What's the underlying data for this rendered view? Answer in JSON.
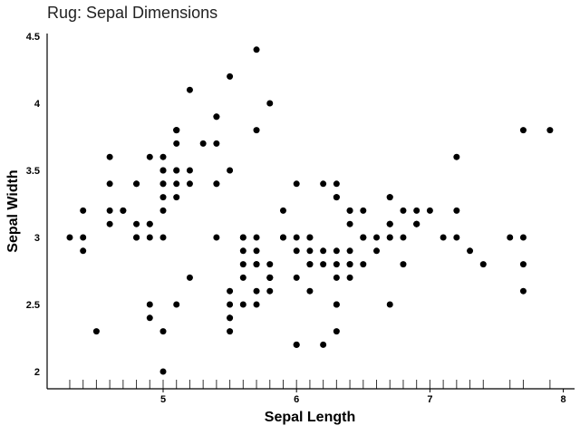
{
  "chart_data": {
    "type": "scatter",
    "title": "Rug: Sepal Dimensions",
    "xlabel": "Sepal Length",
    "ylabel": "Sepal Width",
    "xlim": [
      4.2,
      8.1
    ],
    "ylim": [
      1.9,
      4.5
    ],
    "x_ticks": [
      5,
      6,
      7,
      8
    ],
    "y_ticks": [
      2,
      2.5,
      3,
      3.5,
      4,
      4.5
    ],
    "x_tick_labels": [
      "5",
      "6",
      "7",
      "8"
    ],
    "y_tick_labels": [
      "2",
      "2.5",
      "3",
      "3.5",
      "4",
      "4.5"
    ],
    "rug": "x-axis",
    "marker_color": "#000000",
    "points": [
      [
        5.1,
        3.5
      ],
      [
        4.9,
        3.0
      ],
      [
        4.7,
        3.2
      ],
      [
        4.6,
        3.1
      ],
      [
        5.0,
        3.6
      ],
      [
        5.4,
        3.9
      ],
      [
        4.6,
        3.4
      ],
      [
        5.0,
        3.4
      ],
      [
        4.4,
        2.9
      ],
      [
        4.9,
        3.1
      ],
      [
        5.4,
        3.7
      ],
      [
        4.8,
        3.4
      ],
      [
        4.8,
        3.0
      ],
      [
        4.3,
        3.0
      ],
      [
        5.8,
        4.0
      ],
      [
        5.7,
        4.4
      ],
      [
        5.4,
        3.9
      ],
      [
        5.1,
        3.5
      ],
      [
        5.7,
        3.8
      ],
      [
        5.1,
        3.8
      ],
      [
        5.4,
        3.4
      ],
      [
        5.1,
        3.7
      ],
      [
        4.6,
        3.6
      ],
      [
        5.1,
        3.3
      ],
      [
        4.8,
        3.4
      ],
      [
        5.0,
        3.0
      ],
      [
        5.0,
        3.4
      ],
      [
        5.2,
        3.5
      ],
      [
        5.2,
        3.4
      ],
      [
        4.7,
        3.2
      ],
      [
        4.8,
        3.1
      ],
      [
        5.4,
        3.4
      ],
      [
        5.2,
        4.1
      ],
      [
        5.5,
        4.2
      ],
      [
        4.9,
        3.1
      ],
      [
        5.0,
        3.2
      ],
      [
        5.5,
        3.5
      ],
      [
        4.9,
        3.6
      ],
      [
        4.4,
        3.0
      ],
      [
        5.1,
        3.4
      ],
      [
        5.0,
        3.5
      ],
      [
        4.5,
        2.3
      ],
      [
        4.4,
        3.2
      ],
      [
        5.0,
        3.5
      ],
      [
        5.1,
        3.8
      ],
      [
        4.8,
        3.0
      ],
      [
        5.1,
        3.8
      ],
      [
        4.6,
        3.2
      ],
      [
        5.3,
        3.7
      ],
      [
        5.0,
        3.3
      ],
      [
        7.0,
        3.2
      ],
      [
        6.4,
        3.2
      ],
      [
        6.9,
        3.1
      ],
      [
        5.5,
        2.3
      ],
      [
        6.5,
        2.8
      ],
      [
        5.7,
        2.8
      ],
      [
        6.3,
        3.3
      ],
      [
        4.9,
        2.4
      ],
      [
        6.6,
        2.9
      ],
      [
        5.2,
        2.7
      ],
      [
        5.0,
        2.0
      ],
      [
        5.9,
        3.0
      ],
      [
        6.0,
        2.2
      ],
      [
        6.1,
        2.9
      ],
      [
        5.6,
        2.9
      ],
      [
        6.7,
        3.1
      ],
      [
        5.6,
        3.0
      ],
      [
        5.8,
        2.7
      ],
      [
        6.2,
        2.2
      ],
      [
        5.6,
        2.5
      ],
      [
        5.9,
        3.2
      ],
      [
        6.1,
        2.8
      ],
      [
        6.3,
        2.5
      ],
      [
        6.1,
        2.8
      ],
      [
        6.4,
        2.9
      ],
      [
        6.6,
        3.0
      ],
      [
        6.8,
        2.8
      ],
      [
        6.7,
        3.0
      ],
      [
        6.0,
        2.9
      ],
      [
        5.7,
        2.6
      ],
      [
        5.5,
        2.4
      ],
      [
        5.5,
        2.4
      ],
      [
        5.8,
        2.7
      ],
      [
        6.0,
        2.7
      ],
      [
        5.4,
        3.0
      ],
      [
        6.0,
        3.4
      ],
      [
        6.7,
        3.1
      ],
      [
        6.3,
        2.3
      ],
      [
        5.6,
        3.0
      ],
      [
        5.5,
        2.5
      ],
      [
        5.5,
        2.6
      ],
      [
        6.1,
        3.0
      ],
      [
        5.8,
        2.6
      ],
      [
        5.0,
        2.3
      ],
      [
        5.6,
        2.7
      ],
      [
        5.7,
        3.0
      ],
      [
        5.7,
        2.9
      ],
      [
        6.2,
        2.9
      ],
      [
        5.1,
        2.5
      ],
      [
        5.7,
        2.8
      ],
      [
        6.3,
        3.3
      ],
      [
        5.8,
        2.7
      ],
      [
        7.1,
        3.0
      ],
      [
        6.3,
        2.9
      ],
      [
        6.5,
        3.0
      ],
      [
        7.6,
        3.0
      ],
      [
        4.9,
        2.5
      ],
      [
        7.3,
        2.9
      ],
      [
        6.7,
        2.5
      ],
      [
        7.2,
        3.6
      ],
      [
        6.5,
        3.2
      ],
      [
        6.4,
        2.7
      ],
      [
        6.8,
        3.0
      ],
      [
        5.7,
        2.5
      ],
      [
        5.8,
        2.8
      ],
      [
        6.4,
        3.2
      ],
      [
        6.5,
        3.0
      ],
      [
        7.7,
        3.8
      ],
      [
        7.7,
        2.6
      ],
      [
        6.0,
        2.2
      ],
      [
        6.9,
        3.2
      ],
      [
        5.6,
        2.8
      ],
      [
        7.7,
        2.8
      ],
      [
        6.3,
        2.7
      ],
      [
        6.7,
        3.3
      ],
      [
        7.2,
        3.2
      ],
      [
        6.2,
        2.8
      ],
      [
        6.1,
        3.0
      ],
      [
        6.4,
        2.8
      ],
      [
        7.2,
        3.0
      ],
      [
        7.4,
        2.8
      ],
      [
        7.9,
        3.8
      ],
      [
        6.4,
        2.8
      ],
      [
        6.3,
        2.8
      ],
      [
        6.1,
        2.6
      ],
      [
        7.7,
        3.0
      ],
      [
        6.3,
        3.4
      ],
      [
        6.4,
        3.1
      ],
      [
        6.0,
        3.0
      ],
      [
        6.9,
        3.1
      ],
      [
        6.7,
        3.1
      ],
      [
        6.9,
        3.1
      ],
      [
        5.8,
        2.7
      ],
      [
        6.8,
        3.2
      ],
      [
        6.7,
        3.3
      ],
      [
        6.7,
        3.0
      ],
      [
        6.3,
        2.5
      ],
      [
        6.5,
        3.0
      ],
      [
        6.2,
        3.4
      ],
      [
        5.9,
        3.0
      ]
    ]
  }
}
